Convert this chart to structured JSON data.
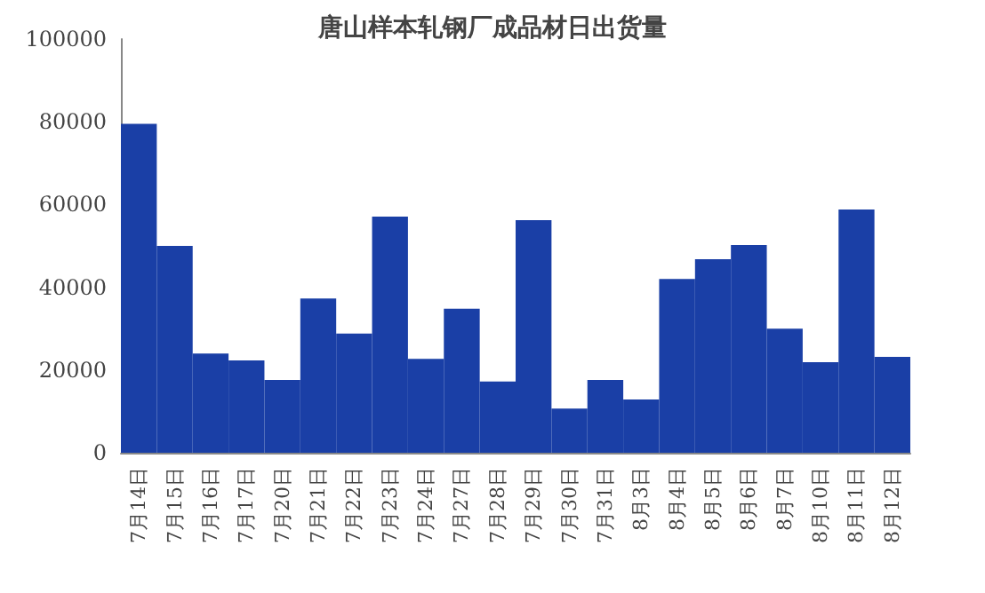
{
  "chart_data": {
    "type": "bar",
    "title": "唐山样本轧钢厂成品材日出货量",
    "categories": [
      "7月14日",
      "7月15日",
      "7月16日",
      "7月17日",
      "7月20日",
      "7月21日",
      "7月22日",
      "7月23日",
      "7月24日",
      "7月27日",
      "7月28日",
      "7月29日",
      "7月30日",
      "7月31日",
      "8月3日",
      "8月4日",
      "8月5日",
      "8月6日",
      "8月7日",
      "8月10日",
      "8月11日",
      "8月12日"
    ],
    "values": [
      79500,
      50000,
      24000,
      22300,
      17600,
      37300,
      28800,
      57100,
      22700,
      34800,
      17200,
      56200,
      10700,
      17600,
      12900,
      42000,
      46800,
      50200,
      30000,
      21900,
      58800,
      23200
    ],
    "color": "#1a3fa6",
    "ylim": [
      0,
      100000
    ],
    "yticks": [
      0,
      20000,
      40000,
      60000,
      80000,
      100000
    ],
    "grid": false
  }
}
